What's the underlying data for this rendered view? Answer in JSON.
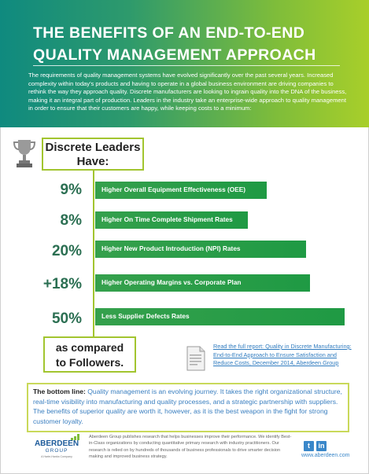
{
  "header": {
    "title_line1": "THE BENEFITS OF AN END-TO-END",
    "title_line2": "QUALITY MANAGEMENT APPROACH",
    "intro": "The requirements of quality management systems have evolved significantly over the past several years. Increased complexity within today's products and having to operate in a global business environment are driving companies to rethink the way they approach quality. Discrete manufacturers are looking to ingrain quality into the DNA of the business, making it an integral part of production. Leaders in the industry take an enterprise-wide approach to quality management in order to ensure that their customers are happy, while keeping costs to a minimum:"
  },
  "leaders": {
    "line1": "Discrete Leaders",
    "line2": "Have:"
  },
  "stats": [
    {
      "value": "9%",
      "label": "Higher Overall Equipment Effectiveness (OEE)"
    },
    {
      "value": "8%",
      "label": "Higher On Time Complete Shipment Rates"
    },
    {
      "value": "20%",
      "label": "Higher New Product Introduction (NPI) Rates"
    },
    {
      "value": "+18%",
      "label": "Higher Operating Margins vs. Corporate Plan"
    },
    {
      "value": "50%",
      "label": "Less Supplier Defects Rates"
    }
  ],
  "compared": {
    "line1": "as compared",
    "line2": "to Followers."
  },
  "report": {
    "line1": "Read the full report: Quality in Discrete Manufacturing:",
    "line2": "End-to-End Approach to Ensure Satisfaction and",
    "line3": "Reduce Costs, December 2014, Aberdeen Group"
  },
  "bottom_line": {
    "label": "The bottom line:",
    "text": " Quality management is an evolving journey. It takes the right organizational structure, real-time visibility into manufacturing and quality processes, and a strategic partnership with suppliers. The benefits of superior quality are worth it, however, as it is the best weapon in the fight for strong customer loyalty."
  },
  "footer": {
    "logo_name": "ABERDEEN",
    "logo_group": "GROUP",
    "logo_sub": "A Harte-Hanks Company",
    "text": "Aberdeen Group publishes research that helps businesses improve their performance. We identify Best-in-Class organizations by conducting quantitative primary research with industry practitioners. Our research is relied on by hundreds of thousands of business professionals to drive smarter decision making and improved business strategy.",
    "twitter": "t",
    "linkedin": "in",
    "site": "www.aberdeen.com"
  },
  "colors": {
    "header_start": "#0f8a7f",
    "header_end": "#a8cf2a",
    "bar": "#2a9d48",
    "accent": "#a2c52f",
    "link": "#2f7bbf"
  }
}
